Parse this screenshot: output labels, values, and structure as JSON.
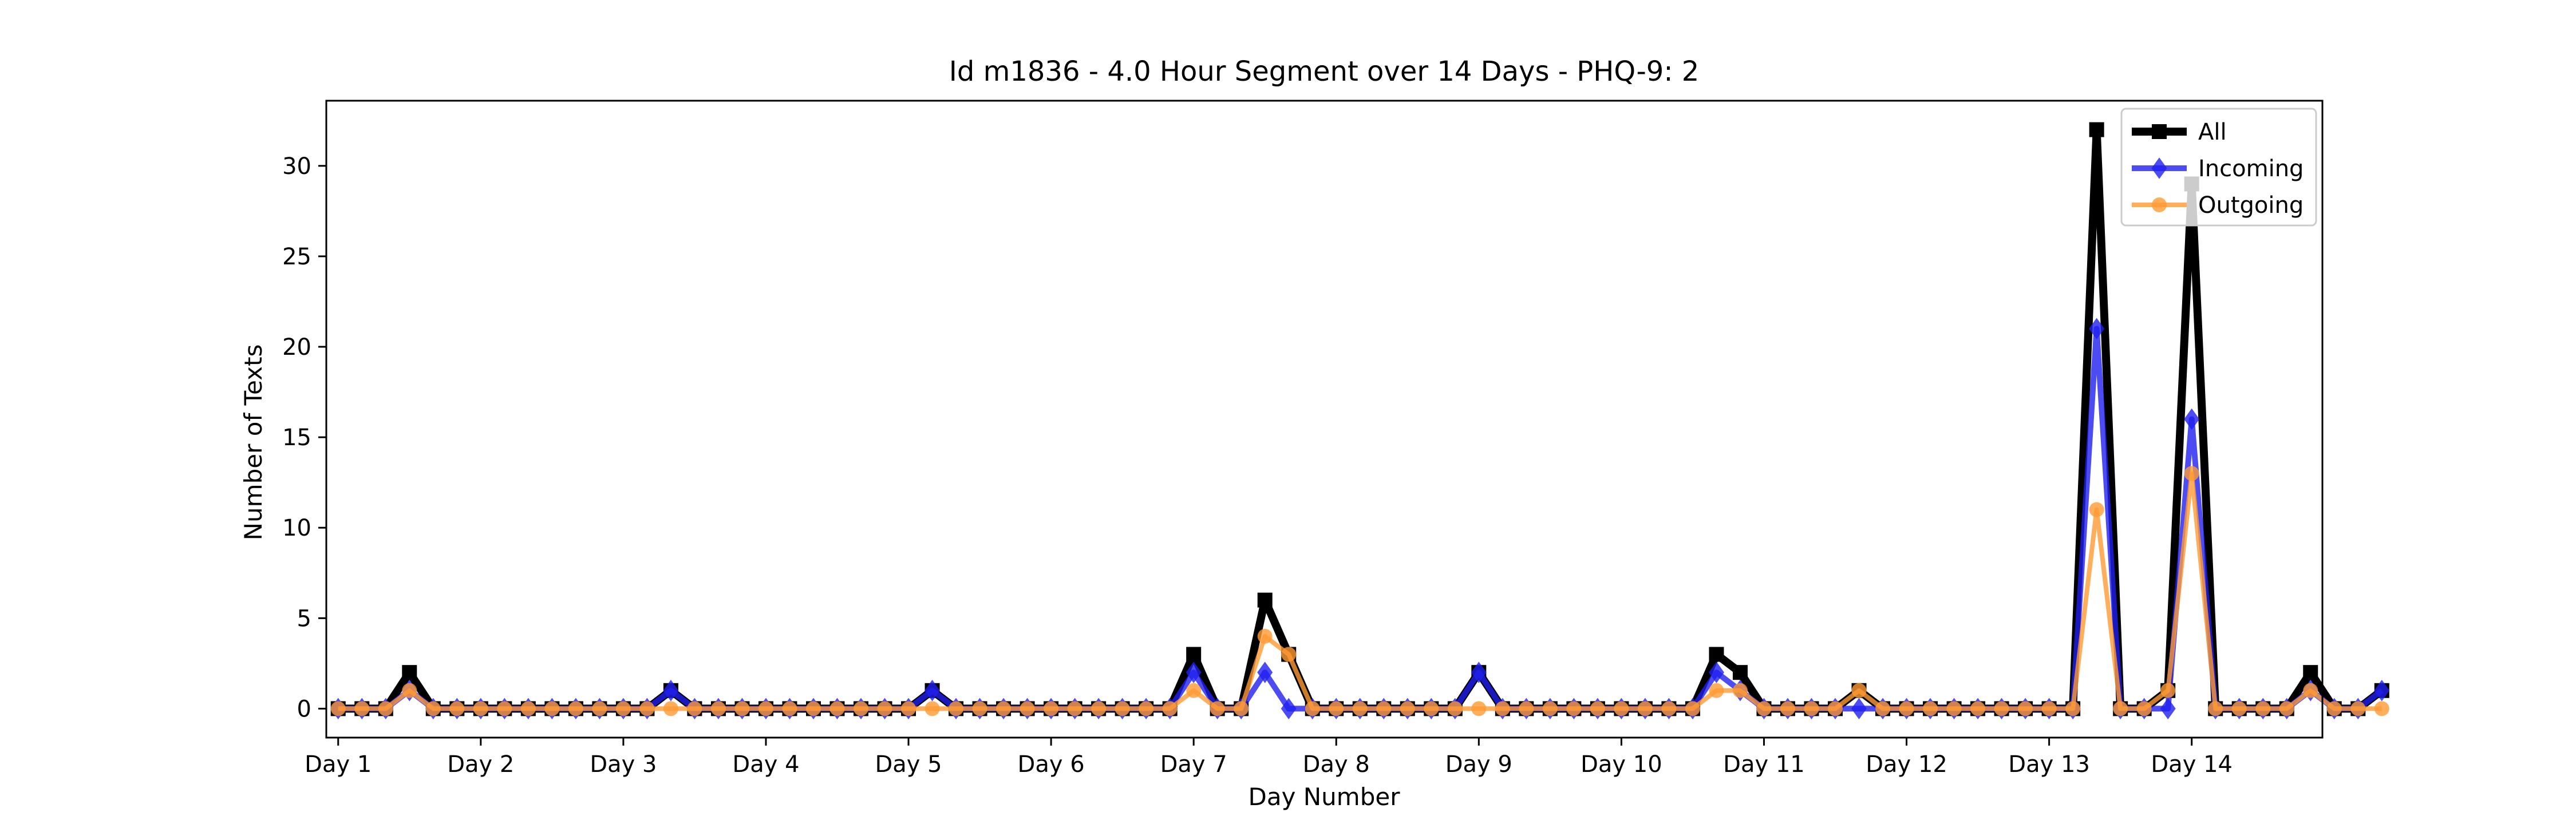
{
  "chart_data": {
    "type": "line",
    "title": "Id m1836 - 4.0 Hour Segment over 14 Days - PHQ-9: 2",
    "xlabel": "Day Number",
    "ylabel": "Number of Texts",
    "xlim": [
      -0.5,
      83.5
    ],
    "ylim": [
      -1.6,
      33.6
    ],
    "x_ticks": [
      0,
      6,
      12,
      18,
      24,
      30,
      36,
      42,
      48,
      54,
      60,
      66,
      72,
      78
    ],
    "x_tick_labels": [
      "Day 1",
      "Day 2",
      "Day 3",
      "Day 4",
      "Day 5",
      "Day 6",
      "Day 7",
      "Day 8",
      "Day 9",
      "Day 10",
      "Day 11",
      "Day 12",
      "Day 13",
      "Day 14"
    ],
    "y_ticks": [
      0,
      5,
      10,
      15,
      20,
      25,
      30
    ],
    "grid": false,
    "legend_position": "top-right",
    "series": [
      {
        "name": "All",
        "color": "#000000",
        "marker": "square",
        "values": [
          0,
          0,
          0,
          2,
          0,
          0,
          0,
          0,
          0,
          0,
          0,
          0,
          0,
          0,
          1,
          0,
          0,
          0,
          0,
          0,
          0,
          0,
          0,
          0,
          0,
          1,
          0,
          0,
          0,
          0,
          0,
          0,
          0,
          0,
          0,
          0,
          3,
          0,
          0,
          6,
          3,
          0,
          0,
          0,
          0,
          0,
          0,
          0,
          2,
          0,
          0,
          0,
          0,
          0,
          0,
          0,
          0,
          0,
          3,
          2,
          0,
          0,
          0,
          0,
          1,
          0,
          0,
          0,
          0,
          0,
          0,
          0,
          0,
          0,
          32,
          0,
          0,
          1,
          29,
          0,
          0,
          0,
          0,
          2,
          0,
          0,
          1
        ]
      },
      {
        "name": "Incoming",
        "color": "#1f1fef",
        "marker": "diamond",
        "values": [
          0,
          0,
          0,
          1,
          0,
          0,
          0,
          0,
          0,
          0,
          0,
          0,
          0,
          0,
          1,
          0,
          0,
          0,
          0,
          0,
          0,
          0,
          0,
          0,
          0,
          1,
          0,
          0,
          0,
          0,
          0,
          0,
          0,
          0,
          0,
          0,
          2,
          0,
          0,
          2,
          0,
          0,
          0,
          0,
          0,
          0,
          0,
          0,
          2,
          0,
          0,
          0,
          0,
          0,
          0,
          0,
          0,
          0,
          2,
          1,
          0,
          0,
          0,
          0,
          0,
          0,
          0,
          0,
          0,
          0,
          0,
          0,
          0,
          0,
          21,
          0,
          0,
          0,
          16,
          0,
          0,
          0,
          0,
          1,
          0,
          0,
          1
        ]
      },
      {
        "name": "Outgoing",
        "color": "#ff9a33",
        "marker": "circle",
        "values": [
          0,
          0,
          0,
          1,
          0,
          0,
          0,
          0,
          0,
          0,
          0,
          0,
          0,
          0,
          0,
          0,
          0,
          0,
          0,
          0,
          0,
          0,
          0,
          0,
          0,
          0,
          0,
          0,
          0,
          0,
          0,
          0,
          0,
          0,
          0,
          0,
          1,
          0,
          0,
          4,
          3,
          0,
          0,
          0,
          0,
          0,
          0,
          0,
          0,
          0,
          0,
          0,
          0,
          0,
          0,
          0,
          0,
          0,
          1,
          1,
          0,
          0,
          0,
          0,
          1,
          0,
          0,
          0,
          0,
          0,
          0,
          0,
          0,
          0,
          11,
          0,
          0,
          1,
          13,
          0,
          0,
          0,
          0,
          1,
          0,
          0,
          0
        ]
      }
    ]
  }
}
